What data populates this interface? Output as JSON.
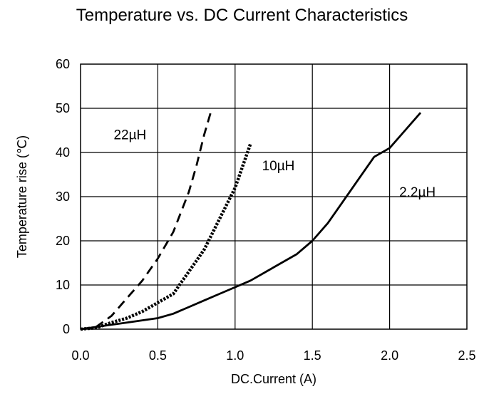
{
  "chart_data": {
    "type": "line",
    "title": "Temperature vs. DC Current Characteristics",
    "xlabel": "DC.Current (A)",
    "ylabel": "Temperature rise (℃)",
    "xlim": [
      0,
      2.5
    ],
    "ylim": [
      0,
      60
    ],
    "xticks": [
      "0.0",
      "0.5",
      "1.0",
      "1.5",
      "2.0",
      "2.5"
    ],
    "yticks": [
      "0",
      "10",
      "20",
      "30",
      "40",
      "50",
      "60"
    ],
    "grid": true,
    "series": [
      {
        "name": "22µH",
        "style": "dashed",
        "label_at": [
          0.32,
          43
        ],
        "x": [
          0.0,
          0.1,
          0.2,
          0.3,
          0.4,
          0.5,
          0.6,
          0.7,
          0.75,
          0.8,
          0.85
        ],
        "y": [
          0,
          0.5,
          3,
          7,
          11,
          16,
          22,
          31,
          37,
          44,
          50
        ]
      },
      {
        "name": "10µH",
        "style": "dotted",
        "label_at": [
          1.28,
          36
        ],
        "x": [
          0.0,
          0.1,
          0.2,
          0.3,
          0.4,
          0.5,
          0.6,
          0.7,
          0.8,
          0.9,
          1.0,
          1.1
        ],
        "y": [
          0,
          0.3,
          1.5,
          2.5,
          4,
          6,
          8,
          13,
          18,
          25,
          32,
          42
        ]
      },
      {
        "name": "2.2µH",
        "style": "solid",
        "label_at": [
          2.18,
          30
        ],
        "x": [
          0.0,
          0.1,
          0.2,
          0.3,
          0.4,
          0.5,
          0.6,
          0.7,
          0.8,
          0.9,
          1.0,
          1.1,
          1.2,
          1.3,
          1.4,
          1.5,
          1.6,
          1.7,
          1.8,
          1.9,
          2.0,
          2.1,
          2.2
        ],
        "y": [
          0,
          0.5,
          1,
          1.5,
          2,
          2.5,
          3.5,
          5,
          6.5,
          8,
          9.5,
          11,
          13,
          15,
          17,
          20,
          24,
          29,
          34,
          39,
          41,
          45,
          49
        ]
      }
    ]
  }
}
